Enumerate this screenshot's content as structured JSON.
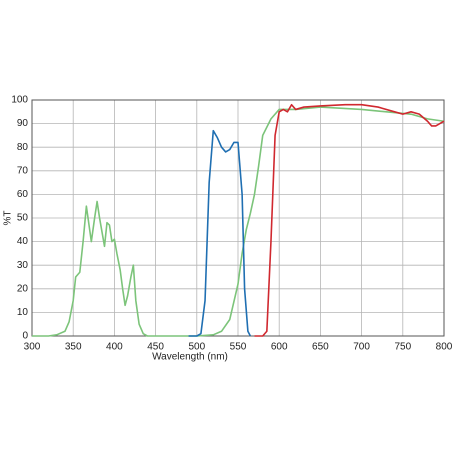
{
  "chart_data": {
    "type": "line",
    "xlabel": "Wavelength (nm)",
    "ylabel": "%T",
    "xlim": [
      300,
      800
    ],
    "ylim": [
      0,
      100
    ],
    "xticks": [
      300,
      350,
      400,
      450,
      500,
      550,
      600,
      650,
      700,
      750,
      800
    ],
    "yticks": [
      0,
      10,
      20,
      30,
      40,
      50,
      60,
      70,
      80,
      90,
      100
    ],
    "grid": true,
    "series": [
      {
        "color": "#7cc47a",
        "x": [
          300,
          320,
          330,
          340,
          345,
          350,
          353,
          358,
          362,
          366,
          370,
          372,
          376,
          379,
          382,
          386,
          388,
          391,
          394,
          397,
          400,
          403,
          407,
          410,
          413,
          416,
          420,
          423,
          426,
          430,
          435,
          440,
          500,
          520,
          530,
          540,
          550,
          555,
          560,
          565,
          570,
          575,
          580,
          590,
          600,
          620,
          650,
          700,
          730,
          760,
          780,
          800
        ],
        "values": [
          0,
          0,
          0.5,
          2,
          6,
          15,
          25,
          27,
          40,
          55,
          45,
          40,
          50,
          57,
          50,
          42,
          38,
          48,
          47,
          40,
          41,
          35,
          28,
          20,
          13,
          17,
          25,
          30,
          15,
          5,
          1,
          0,
          0,
          0.5,
          2,
          7,
          22,
          35,
          45,
          52,
          60,
          72,
          85,
          92,
          96,
          96,
          97,
          96,
          95,
          94,
          92,
          91
        ]
      },
      {
        "color": "#1f6fb2",
        "x": [
          490,
          500,
          505,
          510,
          515,
          520,
          525,
          530,
          535,
          540,
          545,
          550,
          555,
          558,
          562,
          565
        ],
        "values": [
          0,
          0,
          1,
          15,
          65,
          87,
          84,
          80,
          78,
          79,
          82,
          82,
          60,
          20,
          2,
          0
        ]
      },
      {
        "color": "#d0282f",
        "x": [
          570,
          580,
          585,
          590,
          595,
          600,
          605,
          610,
          615,
          620,
          630,
          650,
          680,
          700,
          720,
          740,
          750,
          760,
          770,
          780,
          785,
          790,
          800
        ],
        "values": [
          0,
          0,
          2,
          40,
          85,
          95,
          96,
          95,
          98,
          96,
          97,
          97.5,
          98,
          98,
          97,
          95,
          94,
          95,
          94,
          91,
          89,
          89,
          91
        ]
      }
    ]
  }
}
